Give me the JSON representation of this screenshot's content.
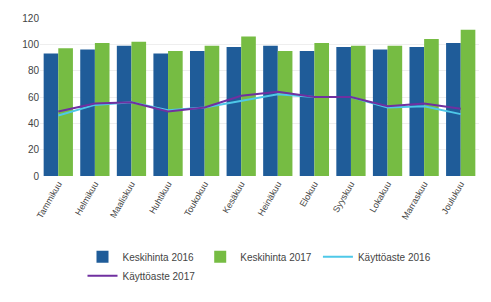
{
  "chart_data": {
    "type": "bar",
    "categories": [
      "Tammikuu",
      "Helmikuu",
      "Maaliskuu",
      "Huhtikuu",
      "Toukokuu",
      "Kesäkuu",
      "Heinäkuu",
      "Elokuu",
      "Syyskuu",
      "Lokakuu",
      "Marraskuu",
      "Joulukuu"
    ],
    "series": [
      {
        "name": "Keskihinta 2016",
        "type": "bar",
        "color": "#1f5c99",
        "values": [
          93,
          96,
          99,
          93,
          95,
          98,
          99,
          95,
          98,
          96,
          98,
          101
        ]
      },
      {
        "name": "Keskihinta 2017",
        "type": "bar",
        "color": "#76bc43",
        "values": [
          97,
          101,
          102,
          95,
          99,
          106,
          95,
          101,
          99,
          99,
          104,
          111
        ]
      },
      {
        "name": "Käyttöaste 2016",
        "type": "line",
        "color": "#4ec8e8",
        "values": [
          46,
          54,
          56,
          50,
          52,
          57,
          62,
          60,
          60,
          52,
          53,
          47
        ]
      },
      {
        "name": "Käyttöaste 2017",
        "type": "line",
        "color": "#7030a0",
        "values": [
          49,
          55,
          56,
          49,
          52,
          61,
          64,
          60,
          60,
          53,
          55,
          51
        ]
      }
    ],
    "ylim": [
      0,
      120
    ],
    "yticks": [
      0,
      20,
      40,
      60,
      80,
      100,
      120
    ],
    "grid": true,
    "legend": "bottom"
  }
}
